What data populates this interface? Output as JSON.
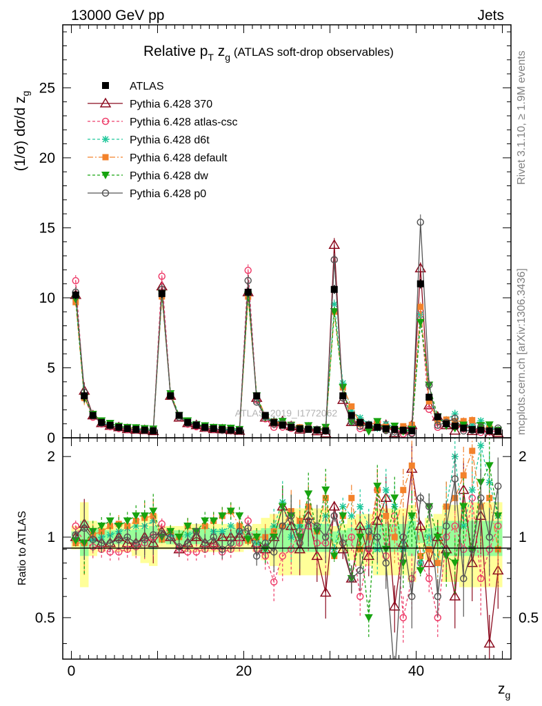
{
  "header": {
    "left": "13000 GeV pp",
    "right": "Jets"
  },
  "title": {
    "prefix": "Relative p",
    "sub_t": "T",
    "z": " z",
    "sub_g": "g",
    "suffix": " (ATLAS soft-drop observables)"
  },
  "watermark": "ATLAS_2019_I1772062",
  "side_text": {
    "rivet": "Rivet 3.1.10, ≥ 1.9M events",
    "mcplots": "mcplots.cern.ch [arXiv:1306.3436]"
  },
  "ratio_ylabel": "Ratio to ATLAS",
  "colors": {
    "data": "#000000",
    "p370": "#8b0a1e",
    "atlascsc": "#ee3d6a",
    "d6t": "#1ec79a",
    "default": "#f3822b",
    "dw": "#16a30f",
    "p0": "#555555",
    "band_yellow": "#ffff99",
    "band_green": "#99ff99"
  },
  "chart_data": {
    "type": "line",
    "title": "Relative pT zg (ATLAS soft-drop observables)",
    "xlabel": "zg",
    "ylabel": "(1/σ) dσ/d zg",
    "xlim": [
      -1,
      51
    ],
    "ylim": [
      0,
      29.5
    ],
    "ratio_ylim": [
      0.35,
      2.35
    ],
    "x_ticks": [
      0,
      20,
      40
    ],
    "y_ticks": [
      0,
      5,
      10,
      15,
      20,
      25
    ],
    "ratio_ticks": [
      0.5,
      1,
      2
    ],
    "legend_position": "top-left",
    "series": [
      {
        "name": "ATLAS",
        "key": "data"
      },
      {
        "name": "Pythia 6.428 370",
        "key": "p370"
      },
      {
        "name": "Pythia 6.428 atlas-csc",
        "key": "atlascsc"
      },
      {
        "name": "Pythia 6.428 d6t",
        "key": "d6t"
      },
      {
        "name": "Pythia 6.428 default",
        "key": "default"
      },
      {
        "name": "Pythia 6.428 dw",
        "key": "dw"
      },
      {
        "name": "Pythia 6.428 p0",
        "key": "p0"
      }
    ],
    "x": [
      0.5,
      1.5,
      2.5,
      3.5,
      4.5,
      5.5,
      6.5,
      7.5,
      8.5,
      9.5,
      10.5,
      11.5,
      12.5,
      13.5,
      14.5,
      15.5,
      16.5,
      17.5,
      18.5,
      19.5,
      20.5,
      21.5,
      22.5,
      23.5,
      24.5,
      25.5,
      26.5,
      27.5,
      28.5,
      29.5,
      30.5,
      31.5,
      32.5,
      33.5,
      34.5,
      35.5,
      36.5,
      37.5,
      38.5,
      39.5,
      40.5,
      41.5,
      42.5,
      43.5,
      44.5,
      45.5,
      46.5,
      47.5,
      48.5,
      49.5
    ],
    "data_values": [
      10.2,
      3.0,
      1.6,
      1.1,
      0.9,
      0.75,
      0.65,
      0.6,
      0.55,
      0.5,
      10.3,
      3.0,
      1.6,
      1.1,
      0.9,
      0.75,
      0.65,
      0.6,
      0.55,
      0.5,
      10.4,
      3.0,
      1.6,
      1.1,
      0.9,
      0.75,
      0.65,
      0.6,
      0.55,
      0.5,
      10.6,
      3.0,
      1.6,
      1.1,
      0.9,
      0.75,
      0.65,
      0.6,
      0.55,
      0.5,
      11.0,
      2.9,
      1.5,
      1.0,
      0.85,
      0.7,
      0.6,
      0.55,
      0.5,
      0.45
    ],
    "data_rel_err": [
      0.06,
      0.3,
      0.12,
      0.1,
      0.09,
      0.1,
      0.1,
      0.12,
      0.18,
      0.2,
      0.06,
      0.07,
      0.08,
      0.09,
      0.09,
      0.1,
      0.1,
      0.1,
      0.1,
      0.1,
      0.06,
      0.1,
      0.15,
      0.2,
      0.25,
      0.25,
      0.25,
      0.25,
      0.25,
      0.25,
      0.06,
      0.1,
      0.15,
      0.2,
      0.2,
      0.25,
      0.25,
      0.25,
      0.25,
      0.3,
      0.06,
      0.15,
      0.2,
      0.3,
      0.3,
      0.35,
      0.35,
      0.35,
      0.35,
      0.35
    ],
    "ratios": {
      "p370": [
        1.0,
        1.12,
        1.0,
        0.95,
        0.95,
        1.0,
        0.95,
        0.95,
        1.0,
        0.95,
        1.05,
        1.0,
        0.9,
        0.95,
        1.0,
        0.95,
        0.95,
        1.0,
        1.0,
        1.0,
        1.0,
        0.95,
        0.9,
        1.0,
        1.3,
        1.1,
        0.9,
        1.2,
        0.85,
        0.62,
        1.3,
        0.9,
        0.7,
        1.1,
        0.85,
        1.15,
        1.4,
        0.55,
        0.95,
        1.8,
        1.1,
        0.8,
        1.0,
        0.9,
        0.6,
        1.5,
        0.8,
        1.2,
        0.4,
        0.75
      ],
      "atlascsc": [
        1.1,
        0.95,
        0.92,
        0.9,
        0.88,
        0.88,
        0.9,
        0.92,
        0.95,
        1.0,
        1.12,
        1.02,
        0.9,
        0.88,
        0.88,
        0.9,
        0.92,
        0.88,
        0.9,
        0.95,
        1.15,
        0.9,
        0.85,
        0.68,
        0.85,
        0.9,
        1.05,
        1.1,
        0.95,
        0.95,
        1.2,
        0.95,
        1.0,
        0.6,
        0.9,
        1.5,
        0.85,
        1.2,
        0.5,
        0.7,
        0.8,
        0.7,
        0.5,
        1.0,
        1.1,
        0.9,
        1.4,
        0.7,
        0.9,
        1.1
      ],
      "d6t": [
        0.98,
        0.95,
        0.98,
        1.0,
        1.02,
        1.05,
        1.08,
        1.1,
        1.1,
        1.15,
        1.0,
        1.02,
        1.0,
        1.02,
        1.05,
        1.1,
        1.05,
        1.05,
        1.1,
        1.05,
        1.0,
        0.95,
        0.9,
        1.1,
        1.35,
        1.0,
        1.1,
        1.3,
        1.05,
        1.2,
        0.9,
        1.3,
        1.2,
        1.3,
        1.1,
        0.9,
        1.5,
        1.3,
        0.9,
        1.2,
        0.8,
        1.0,
        0.8,
        1.3,
        2.0,
        1.1,
        1.5,
        2.2,
        1.6,
        1.2
      ],
      "default": [
        0.95,
        0.95,
        1.02,
        1.05,
        1.1,
        1.12,
        1.1,
        1.15,
        1.18,
        1.2,
        0.98,
        1.05,
        1.0,
        1.1,
        1.05,
        1.1,
        1.15,
        1.2,
        1.25,
        1.1,
        0.97,
        1.0,
        1.0,
        1.05,
        1.1,
        1.25,
        1.15,
        1.3,
        1.05,
        1.4,
        0.85,
        1.2,
        1.4,
        0.9,
        1.0,
        1.5,
        1.2,
        1.0,
        1.5,
        1.85,
        0.85,
        0.9,
        0.8,
        1.3,
        1.4,
        1.7,
        2.1,
        1.3,
        1.4,
        0.9
      ],
      "dw": [
        0.97,
        0.95,
        1.05,
        1.1,
        1.15,
        1.1,
        1.15,
        1.2,
        1.2,
        1.25,
        1.0,
        1.05,
        1.0,
        1.1,
        1.05,
        1.15,
        1.15,
        1.2,
        1.25,
        1.2,
        0.98,
        1.0,
        0.9,
        1.0,
        1.3,
        1.2,
        1.0,
        1.45,
        1.05,
        1.5,
        0.85,
        1.2,
        0.7,
        1.0,
        0.5,
        1.55,
        0.9,
        1.4,
        0.8,
        1.2,
        0.75,
        1.3,
        1.0,
        0.85,
        0.8,
        1.3,
        0.9,
        1.6,
        1.85,
        1.2
      ],
      "p0": [
        1.02,
        1.08,
        0.98,
        0.95,
        0.95,
        0.98,
        1.0,
        0.95,
        0.98,
        1.02,
        1.03,
        1.0,
        0.92,
        0.95,
        1.05,
        0.95,
        1.0,
        0.9,
        0.95,
        1.05,
        1.08,
        0.85,
        0.95,
        0.88,
        1.1,
        1.2,
        0.95,
        1.15,
        1.1,
        1.0,
        1.2,
        0.95,
        0.7,
        0.75,
        1.05,
        1.0,
        0.8,
        0.3,
        1.0,
        0.6,
        1.4,
        1.3,
        0.6,
        1.1,
        1.65,
        0.7,
        0.9,
        1.4,
        1.0,
        1.55
      ]
    },
    "bands": {
      "yellow_rel": [
        0.1,
        0.35,
        0.15,
        0.12,
        0.1,
        0.12,
        0.12,
        0.15,
        0.2,
        0.22,
        0.1,
        0.1,
        0.1,
        0.12,
        0.12,
        0.12,
        0.12,
        0.12,
        0.12,
        0.12,
        0.1,
        0.12,
        0.18,
        0.22,
        0.28,
        0.28,
        0.28,
        0.28,
        0.28,
        0.28,
        0.1,
        0.12,
        0.18,
        0.22,
        0.22,
        0.28,
        0.28,
        0.28,
        0.28,
        0.32,
        0.1,
        0.18,
        0.22,
        0.32,
        0.32,
        0.35,
        0.35,
        0.35,
        0.35,
        0.35
      ],
      "green_rel": [
        0.05,
        0.15,
        0.08,
        0.07,
        0.06,
        0.06,
        0.06,
        0.07,
        0.08,
        0.1,
        0.05,
        0.06,
        0.06,
        0.06,
        0.06,
        0.07,
        0.07,
        0.07,
        0.07,
        0.07,
        0.05,
        0.06,
        0.08,
        0.1,
        0.12,
        0.12,
        0.12,
        0.12,
        0.12,
        0.12,
        0.05,
        0.06,
        0.08,
        0.1,
        0.1,
        0.12,
        0.12,
        0.12,
        0.12,
        0.15,
        0.05,
        0.08,
        0.1,
        0.15,
        0.15,
        0.15,
        0.15,
        0.15,
        0.15,
        0.15
      ]
    }
  }
}
